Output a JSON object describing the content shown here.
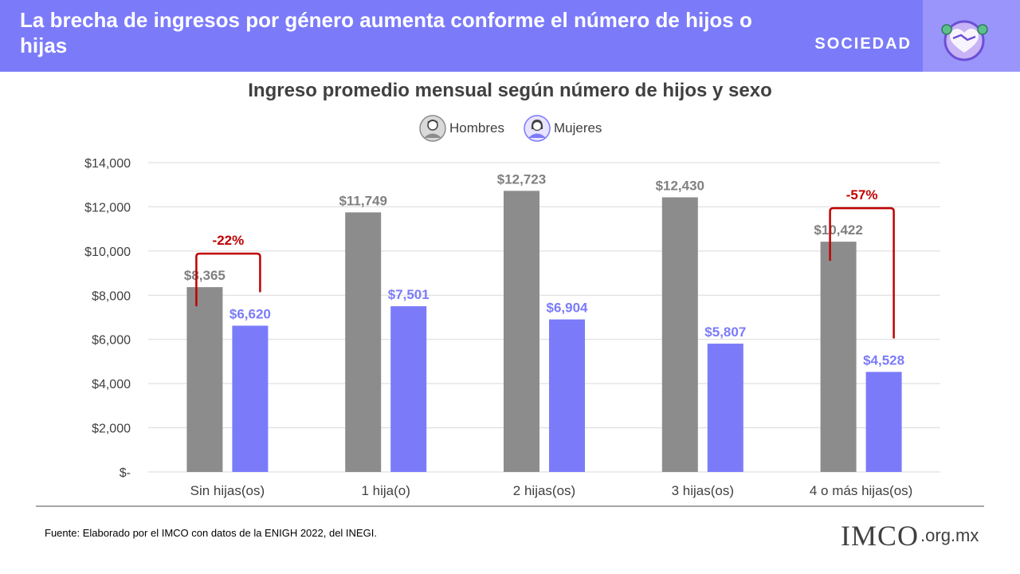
{
  "header": {
    "title": "La brecha de ingresos por género aumenta conforme el número de hijos o hijas",
    "section": "SOCIEDAD",
    "icon": "handshake-heart-icon"
  },
  "chart_data": {
    "type": "bar",
    "title": "Ingreso promedio mensual según número de hijos y sexo",
    "categories": [
      "Sin hijas(os)",
      "1 hija(o)",
      "2 hijas(os)",
      "3 hijas(os)",
      "4 o más hijas(os)"
    ],
    "series": [
      {
        "name": "Hombres",
        "values": [
          8365,
          11749,
          12723,
          12430,
          10422
        ],
        "color": "#8c8c8c",
        "labels": [
          "$8,365",
          "$11,749",
          "$12,723",
          "$12,430",
          "$10,422"
        ]
      },
      {
        "name": "Mujeres",
        "values": [
          6620,
          7501,
          6904,
          5807,
          4528
        ],
        "color": "#7b7bfa",
        "labels": [
          "$6,620",
          "$7,501",
          "$6,904",
          "$5,807",
          "$4,528"
        ]
      }
    ],
    "ylim": [
      0,
      14000
    ],
    "yticks": [
      0,
      2000,
      4000,
      6000,
      8000,
      10000,
      12000,
      14000
    ],
    "ytick_labels": [
      "$-",
      "$2,000",
      "$4,000",
      "$6,000",
      "$8,000",
      "$10,000",
      "$12,000",
      "$14,000"
    ],
    "grid": true,
    "legend_position": "top-center",
    "annotations": [
      {
        "category": "Sin hijas(os)",
        "text": "-22%"
      },
      {
        "category": "4 o más hijas(os)",
        "text": "-57%"
      }
    ],
    "annotation_color": "#c00000",
    "label_colors": {
      "Hombres": "#808080",
      "Mujeres": "#7b7bfa"
    }
  },
  "legend": {
    "hombres": "Hombres",
    "mujeres": "Mujeres"
  },
  "footer": {
    "source": "Fuente: Elaborado por el IMCO con datos de la ENIGH 2022, del INEGI.",
    "logo_main": "IMCO",
    "logo_suffix": ".org.mx"
  }
}
